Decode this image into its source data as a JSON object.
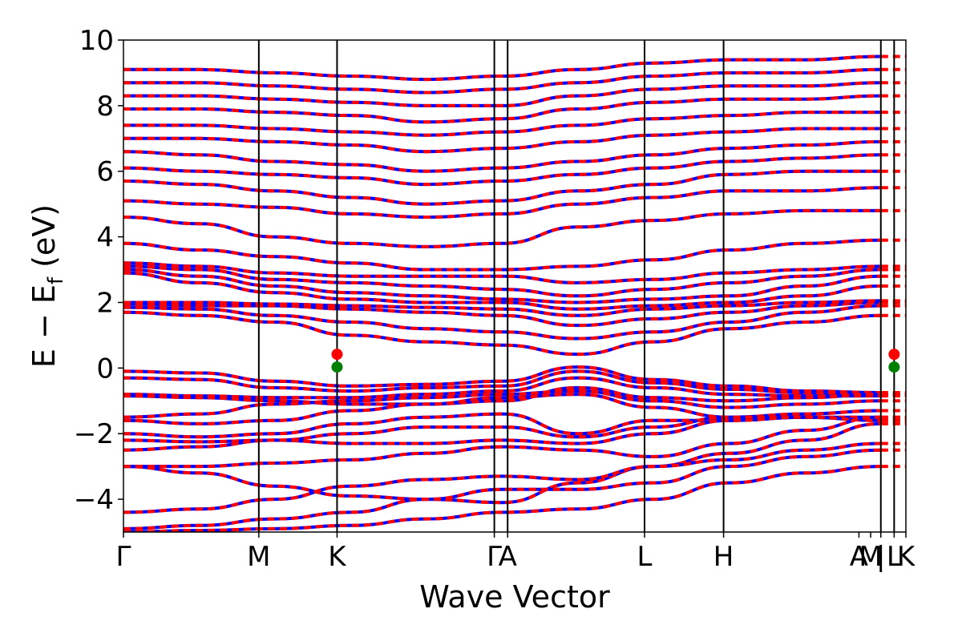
{
  "chart_data": {
    "type": "line",
    "xlabel": "Wave Vector",
    "ylabel_main": "E − E",
    "ylabel_sub": "f",
    "ylabel_unit": " (eV)",
    "ylim": [
      -5,
      10
    ],
    "yticks": [
      {
        "value": 10,
        "label": "10"
      },
      {
        "value": 8,
        "label": "8"
      },
      {
        "value": 6,
        "label": "6"
      },
      {
        "value": 4,
        "label": "4"
      },
      {
        "value": 2,
        "label": "2"
      },
      {
        "value": 0,
        "label": "0"
      },
      {
        "value": -2,
        "label": "−2"
      },
      {
        "value": -4,
        "label": "−4"
      }
    ],
    "kpath_lines": [
      0.173,
      0.273,
      0.474,
      0.491,
      0.666,
      0.767,
      0.968,
      0.985
    ],
    "kpath_labels": [
      {
        "value": 0.0,
        "label": "Γ"
      },
      {
        "value": 0.173,
        "label": "M"
      },
      {
        "value": 0.273,
        "label": "K"
      },
      {
        "value": 0.474,
        "label": "Γ"
      },
      {
        "value": 0.491,
        "label": "A"
      },
      {
        "value": 0.666,
        "label": "L"
      },
      {
        "value": 0.767,
        "label": "H"
      },
      {
        "value": 0.94,
        "label": "A"
      },
      {
        "value": 0.955,
        "label": "M"
      },
      {
        "value": 0.968,
        "label": "|"
      },
      {
        "value": 0.985,
        "label": "L"
      },
      {
        "value": 1.0,
        "label": "K"
      }
    ],
    "series_colors": {
      "reference": "#0000ff",
      "comparison": "#ff0000"
    },
    "markers": [
      {
        "x": 0.273,
        "y": 0.42,
        "color": "#ff0000"
      },
      {
        "x": 0.273,
        "y": 0.03,
        "color": "#008000"
      },
      {
        "x": 0.985,
        "y": 0.42,
        "color": "#ff0000"
      },
      {
        "x": 0.985,
        "y": 0.03,
        "color": "#008000"
      }
    ],
    "bands_valence": [
      [
        -0.1,
        -0.15,
        -0.4,
        -0.55,
        -0.5,
        -0.4,
        0.03,
        -0.35,
        -0.55,
        -0.7,
        -0.75
      ],
      [
        -0.3,
        -0.35,
        -0.6,
        -0.7,
        -0.6,
        -0.55,
        -0.1,
        -0.45,
        -0.65,
        -0.75,
        -0.8
      ],
      [
        -0.8,
        -0.85,
        -0.9,
        -0.9,
        -0.8,
        -0.7,
        -0.3,
        -0.6,
        -0.8,
        -0.85,
        -0.85
      ],
      [
        -0.85,
        -0.9,
        -1.0,
        -1.1,
        -1.1,
        -1.0,
        -0.6,
        -0.9,
        -1.0,
        -0.9,
        -0.8
      ],
      [
        -1.5,
        -1.4,
        -1.1,
        -1.0,
        -0.9,
        -0.8,
        -0.7,
        -1.0,
        -1.2,
        -1.1,
        -1.0
      ],
      [
        -1.6,
        -1.7,
        -1.6,
        -1.3,
        -1.1,
        -0.9,
        -0.8,
        -1.2,
        -1.5,
        -1.4,
        -1.3
      ],
      [
        -2.0,
        -2.1,
        -2.0,
        -1.7,
        -1.5,
        -1.4,
        -2.0,
        -1.6,
        -1.6,
        -1.5,
        -1.5
      ],
      [
        -2.2,
        -2.25,
        -2.2,
        -2.0,
        -1.8,
        -1.8,
        -2.1,
        -1.8,
        -1.5,
        -1.5,
        -1.6
      ],
      [
        -2.5,
        -2.4,
        -2.2,
        -2.3,
        -2.3,
        -2.2,
        -2.3,
        -2.0,
        -1.6,
        -1.5,
        -1.6
      ],
      [
        -3.0,
        -3.0,
        -2.9,
        -2.8,
        -2.6,
        -2.4,
        -2.5,
        -2.7,
        -2.3,
        -1.9,
        -1.5
      ],
      [
        -3.0,
        -3.2,
        -3.6,
        -3.9,
        -4.0,
        -4.1,
        -3.5,
        -3.0,
        -2.6,
        -2.2,
        -1.7
      ],
      [
        -4.4,
        -4.3,
        -4.0,
        -3.6,
        -3.4,
        -3.3,
        -3.4,
        -3.0,
        -2.8,
        -2.5,
        -2.3
      ],
      [
        -4.9,
        -4.8,
        -4.6,
        -4.4,
        -4.0,
        -3.7,
        -3.7,
        -3.5,
        -3.0,
        -2.7,
        -2.5
      ],
      [
        -5.0,
        -4.95,
        -4.9,
        -4.8,
        -4.6,
        -4.4,
        -4.3,
        -4.0,
        -3.5,
        -3.2,
        -3.0
      ]
    ],
    "bands_conduction": [
      [
        1.7,
        1.6,
        1.4,
        1.0,
        0.8,
        0.7,
        0.42,
        0.8,
        1.2,
        1.4,
        1.6
      ],
      [
        1.85,
        1.8,
        1.6,
        1.4,
        1.2,
        1.1,
        0.9,
        1.1,
        1.4,
        1.7,
        1.9
      ],
      [
        1.95,
        1.9,
        1.9,
        1.8,
        1.7,
        1.6,
        1.3,
        1.5,
        1.7,
        1.9,
        2.0
      ],
      [
        2.0,
        2.0,
        1.95,
        1.9,
        1.85,
        1.8,
        1.6,
        1.8,
        1.9,
        2.0,
        2.05
      ],
      [
        2.9,
        2.6,
        2.3,
        2.1,
        2.0,
        2.0,
        1.8,
        1.9,
        2.0,
        2.2,
        2.5
      ],
      [
        3.0,
        2.8,
        2.5,
        2.3,
        2.2,
        2.1,
        2.0,
        2.1,
        2.2,
        2.5,
        2.8
      ],
      [
        3.1,
        3.0,
        2.7,
        2.6,
        2.5,
        2.4,
        2.2,
        2.4,
        2.6,
        2.8,
        3.0
      ],
      [
        3.2,
        3.1,
        2.9,
        2.8,
        2.8,
        2.8,
        2.6,
        2.7,
        2.9,
        3.0,
        3.1
      ],
      [
        3.8,
        3.6,
        3.4,
        3.2,
        3.0,
        3.0,
        3.1,
        3.3,
        3.6,
        3.8,
        3.9
      ],
      [
        4.6,
        4.4,
        4.0,
        3.8,
        3.7,
        3.8,
        4.3,
        4.5,
        4.7,
        4.8,
        4.8
      ],
      [
        5.1,
        5.0,
        4.9,
        4.7,
        4.6,
        4.7,
        5.0,
        5.2,
        5.4,
        5.4,
        5.5
      ],
      [
        5.7,
        5.6,
        5.4,
        5.2,
        5.0,
        5.1,
        5.4,
        5.6,
        5.9,
        6.0,
        6.0
      ],
      [
        6.1,
        6.0,
        5.9,
        5.8,
        5.6,
        5.7,
        5.9,
        6.1,
        6.3,
        6.4,
        6.5
      ],
      [
        6.6,
        6.5,
        6.3,
        6.2,
        6.0,
        6.1,
        6.3,
        6.5,
        6.7,
        6.8,
        6.9
      ],
      [
        7.0,
        7.0,
        6.9,
        6.8,
        6.6,
        6.7,
        6.9,
        7.1,
        7.2,
        7.3,
        7.3
      ],
      [
        7.4,
        7.4,
        7.3,
        7.2,
        7.1,
        7.2,
        7.4,
        7.6,
        7.7,
        7.8,
        7.8
      ],
      [
        7.9,
        7.9,
        7.8,
        7.7,
        7.5,
        7.6,
        7.9,
        8.1,
        8.2,
        8.2,
        8.3
      ],
      [
        8.3,
        8.3,
        8.2,
        8.1,
        8.0,
        8.0,
        8.3,
        8.5,
        8.6,
        8.6,
        8.7
      ],
      [
        8.7,
        8.7,
        8.6,
        8.5,
        8.4,
        8.5,
        8.7,
        8.9,
        9.0,
        9.0,
        9.1
      ],
      [
        9.1,
        9.1,
        9.0,
        8.9,
        8.8,
        8.9,
        9.1,
        9.3,
        9.4,
        9.4,
        9.5
      ]
    ]
  }
}
